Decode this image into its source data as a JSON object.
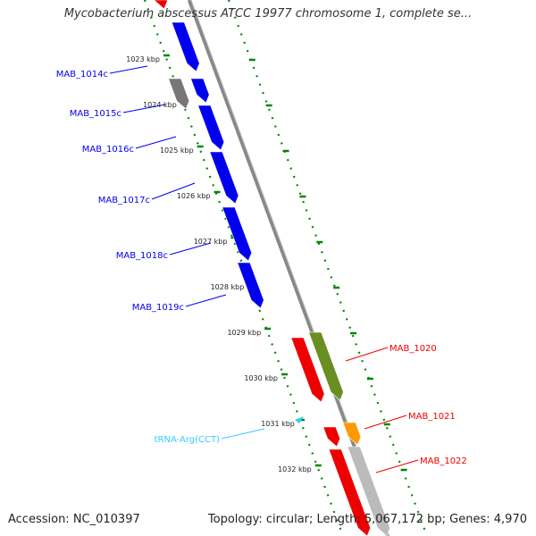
{
  "title": "Mycobacterium abscessus ATCC 19977 chromosome 1, complete se...",
  "footer": {
    "accession": "Accession: NC_010397",
    "summary": "Topology: circular; Length: 5,067,172 bp; Genes: 4,970"
  },
  "ruler_ticks": [
    "1023 kbp",
    "1024 kbp",
    "1025 kbp",
    "1026 kbp",
    "1027 kbp",
    "1028 kbp",
    "1029 kbp",
    "1030 kbp",
    "1031 kbp",
    "1032 kbp"
  ],
  "genes": [
    {
      "label": "MAB_1014c",
      "strand": "reverse",
      "color": "#0000ee"
    },
    {
      "label": "MAB_1015c",
      "strand": "reverse",
      "color": "#0000ee"
    },
    {
      "label": "MAB_1016c",
      "strand": "reverse",
      "color": "#0000ee"
    },
    {
      "label": "MAB_1017c",
      "strand": "reverse",
      "color": "#0000ee"
    },
    {
      "label": "MAB_1018c",
      "strand": "reverse",
      "color": "#0000ee"
    },
    {
      "label": "MAB_1019c",
      "strand": "reverse",
      "color": "#0000ee"
    },
    {
      "label": "tRNA-Arg(CCT)",
      "strand": "reverse",
      "color": "#33ccff"
    },
    {
      "label": "MAB_1020",
      "strand": "forward",
      "color": "#ee0000"
    },
    {
      "label": "MAB_1021",
      "strand": "forward",
      "color": "#ee0000"
    },
    {
      "label": "MAB_1022",
      "strand": "forward",
      "color": "#ee0000"
    }
  ],
  "colors": {
    "cds_reverse": "#0000ee",
    "cds_forward": "#ee0000",
    "gene_grey": "#777777",
    "gene_olive": "#6b8e23",
    "gene_orange": "#ff9900",
    "gene_lightgrey": "#bbbbbb",
    "trna": "#33ccff",
    "backbone": "#888888",
    "ruler": "#008800"
  }
}
